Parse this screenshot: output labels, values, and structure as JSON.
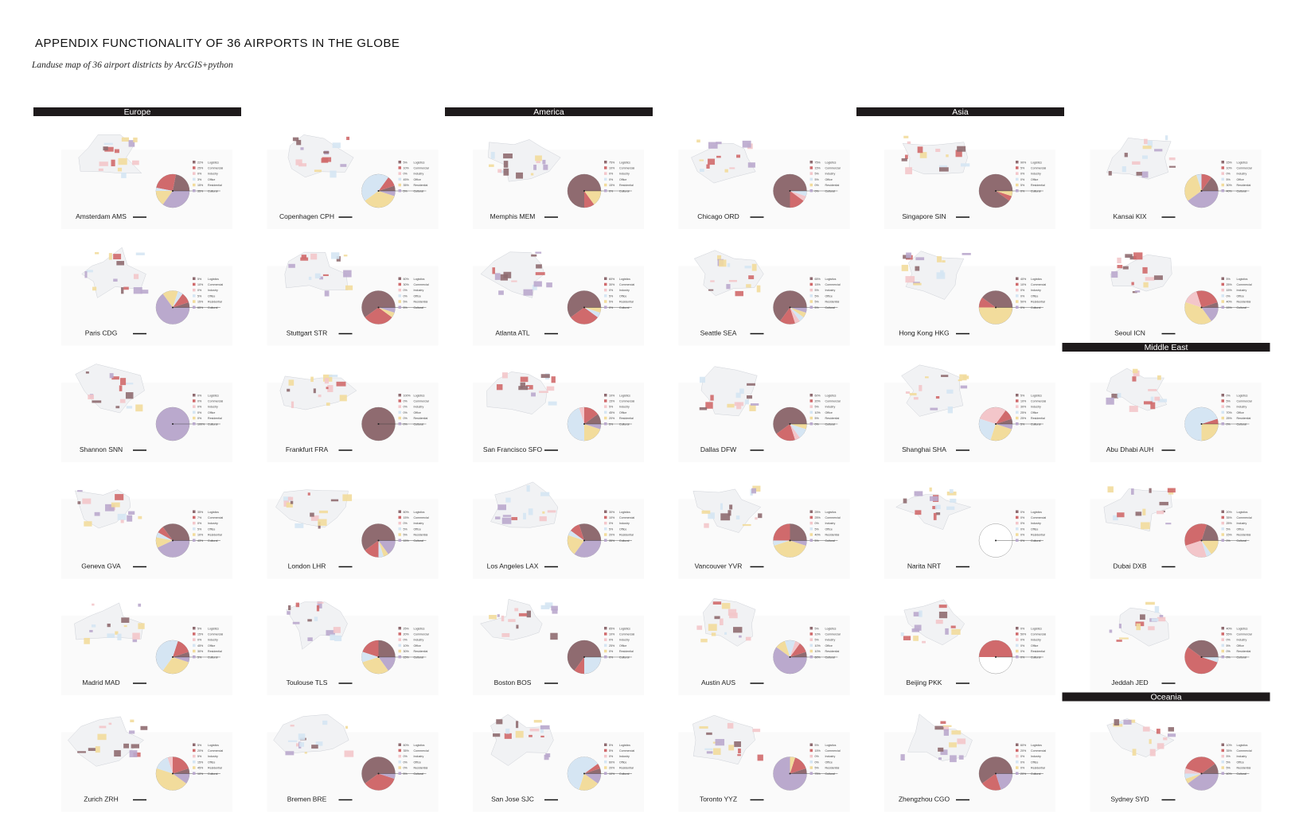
{
  "header": {
    "title": "APPENDIX    FUNCTIONALITY OF 36 AIRPORTS IN THE GLOBE",
    "subtitle": "Landuse map of 36 airport districts by ArcGIS+python"
  },
  "categories": [
    "Logistics",
    "Commercial",
    "Industry",
    "Office",
    "Residential",
    "Cultural"
  ],
  "colors": [
    "#8f6b70",
    "#d06a6c",
    "#f3c6ca",
    "#d5e5f3",
    "#f2dc9c",
    "#baa9cd"
  ],
  "regions": [
    {
      "name": "Europe",
      "column": 0,
      "row": 0
    },
    {
      "name": "America",
      "column": 2,
      "row": 0
    },
    {
      "name": "Asia",
      "column": 4,
      "row": 0
    },
    {
      "name": "Middle East",
      "column": 5,
      "row": 2
    },
    {
      "name": "Oceania",
      "column": 5,
      "row": 5
    }
  ],
  "airports": [
    {
      "name": "Amsterdam AMS",
      "shares": [
        22,
        25,
        0,
        3,
        15,
        35
      ],
      "share_labels": [
        "22%",
        "25%",
        "0%",
        "3%",
        "15%",
        "35%"
      ]
    },
    {
      "name": "Paris CDG",
      "shares": [
        5,
        10,
        0,
        5,
        15,
        65
      ],
      "share_labels": [
        "5%",
        "10%",
        "0%",
        "5%",
        "15%",
        "65%"
      ]
    },
    {
      "name": "Shannon SNN",
      "shares": [
        0,
        0,
        0,
        0,
        0,
        100
      ],
      "share_labels": [
        "0%",
        "0%",
        "0%",
        "0%",
        "0%",
        "100%"
      ]
    },
    {
      "name": "Geneva GVA",
      "shares": [
        35,
        7,
        0,
        5,
        10,
        43
      ],
      "share_labels": [
        "35%",
        "7%",
        "0%",
        "5%",
        "10%",
        "43%"
      ]
    },
    {
      "name": "Madrid MAD",
      "shares": [
        5,
        15,
        0,
        45,
        30,
        5
      ],
      "share_labels": [
        "5%",
        "15%",
        "0%",
        "45%",
        "30%",
        "5%"
      ]
    },
    {
      "name": "Zurich ZRH",
      "shares": [
        5,
        20,
        5,
        15,
        45,
        10
      ],
      "share_labels": [
        "5%",
        "20%",
        "5%",
        "15%",
        "45%",
        "10%"
      ]
    },
    {
      "name": "Copenhagen CPH",
      "shares": [
        5,
        10,
        0,
        45,
        35,
        5
      ],
      "share_labels": [
        "5%",
        "10%",
        "0%",
        "45%",
        "35%",
        "5%"
      ]
    },
    {
      "name": "Stuttgart STR",
      "shares": [
        60,
        30,
        0,
        0,
        5,
        5
      ],
      "share_labels": [
        "60%",
        "30%",
        "0%",
        "0%",
        "5%",
        "5%"
      ]
    },
    {
      "name": "Frankfurt FRA",
      "shares": [
        100,
        0,
        0,
        0,
        0,
        0
      ],
      "share_labels": [
        "100%",
        "0%",
        "0%",
        "0%",
        "0%",
        "0%"
      ]
    },
    {
      "name": "London LHR",
      "shares": [
        60,
        15,
        0,
        5,
        5,
        15
      ],
      "share_labels": [
        "60%",
        "15%",
        "0%",
        "5%",
        "5%",
        "15%"
      ]
    },
    {
      "name": "Toulouse TLS",
      "shares": [
        25,
        20,
        0,
        10,
        30,
        15
      ],
      "share_labels": [
        "25%",
        "20%",
        "0%",
        "10%",
        "30%",
        "15%"
      ]
    },
    {
      "name": "Bremen BRE",
      "shares": [
        60,
        35,
        0,
        0,
        0,
        5
      ],
      "share_labels": [
        "60%",
        "35%",
        "0%",
        "0%",
        "0%",
        "5%"
      ]
    },
    {
      "name": "Memphis MEM",
      "shares": [
        75,
        10,
        0,
        0,
        15,
        0
      ],
      "share_labels": [
        "75%",
        "10%",
        "0%",
        "0%",
        "15%",
        "0%"
      ]
    },
    {
      "name": "Atlanta ATL",
      "shares": [
        60,
        30,
        0,
        5,
        5,
        0
      ],
      "share_labels": [
        "60%",
        "30%",
        "0%",
        "5%",
        "5%",
        "0%"
      ]
    },
    {
      "name": "San Francisco SFO",
      "shares": [
        10,
        15,
        5,
        45,
        20,
        5
      ],
      "share_labels": [
        "10%",
        "15%",
        "5%",
        "45%",
        "20%",
        "5%"
      ]
    },
    {
      "name": "Los Angeles LAX",
      "shares": [
        30,
        10,
        0,
        5,
        20,
        35
      ],
      "share_labels": [
        "30%",
        "10%",
        "0%",
        "5%",
        "20%",
        "35%"
      ]
    },
    {
      "name": "Boston BOS",
      "shares": [
        65,
        10,
        0,
        25,
        0,
        0
      ],
      "share_labels": [
        "65%",
        "10%",
        "0%",
        "25%",
        "0%",
        "0%"
      ]
    },
    {
      "name": "San Jose SJC",
      "shares": [
        5,
        5,
        0,
        60,
        20,
        10
      ],
      "share_labels": [
        "5%",
        "5%",
        "0%",
        "60%",
        "20%",
        "10%"
      ]
    },
    {
      "name": "Chicago ORD",
      "shares": [
        75,
        15,
        5,
        5,
        0,
        0
      ],
      "share_labels": [
        "75%",
        "15%",
        "5%",
        "5%",
        "0%",
        "0%"
      ]
    },
    {
      "name": "Seattle SEA",
      "shares": [
        65,
        15,
        5,
        5,
        5,
        5
      ],
      "share_labels": [
        "65%",
        "15%",
        "5%",
        "5%",
        "5%",
        "5%"
      ]
    },
    {
      "name": "Dallas DFW",
      "shares": [
        60,
        20,
        5,
        10,
        5,
        0
      ],
      "share_labels": [
        "60%",
        "20%",
        "5%",
        "10%",
        "5%",
        "0%"
      ]
    },
    {
      "name": "Vancouver YVR",
      "shares": [
        25,
        25,
        0,
        5,
        40,
        5
      ],
      "share_labels": [
        "25%",
        "25%",
        "0%",
        "5%",
        "40%",
        "5%"
      ]
    },
    {
      "name": "Austin AUS",
      "shares": [
        5,
        10,
        5,
        10,
        10,
        60
      ],
      "share_labels": [
        "5%",
        "10%",
        "5%",
        "10%",
        "10%",
        "60%"
      ]
    },
    {
      "name": "Toronto YYZ",
      "shares": [
        5,
        15,
        0,
        0,
        5,
        75
      ],
      "share_labels": [
        "5%",
        "15%",
        "0%",
        "0%",
        "5%",
        "75%"
      ]
    },
    {
      "name": "Singapore SIN",
      "shares": [
        90,
        5,
        0,
        0,
        5,
        0
      ],
      "share_labels": [
        "90%",
        "5%",
        "0%",
        "0%",
        "5%",
        "0%"
      ]
    },
    {
      "name": "Hong Kong HKG",
      "shares": [
        40,
        10,
        0,
        0,
        50,
        0
      ],
      "share_labels": [
        "40%",
        "10%",
        "0%",
        "0%",
        "50%",
        "0%"
      ]
    },
    {
      "name": "Shanghai SHA",
      "shares": [
        5,
        10,
        30,
        25,
        25,
        5
      ],
      "share_labels": [
        "5%",
        "10%",
        "30%",
        "25%",
        "25%",
        "5%"
      ]
    },
    {
      "name": "Narita NRT",
      "shares": [
        0,
        0,
        0,
        0,
        0,
        0
      ],
      "share_labels": [
        "0%",
        "0%",
        "0%",
        "0%",
        "0%",
        "0%"
      ]
    },
    {
      "name": "Beijing PKK",
      "shares": [
        0,
        50,
        0,
        0,
        0,
        0
      ],
      "share_labels": [
        "0%",
        "50%",
        "0%",
        "0%",
        "0%",
        "0%"
      ]
    },
    {
      "name": "Zhengzhou CGO",
      "shares": [
        60,
        20,
        0,
        0,
        0,
        20
      ],
      "share_labels": [
        "60%",
        "20%",
        "0%",
        "0%",
        "0%",
        "20%"
      ]
    },
    {
      "name": "Kansai KIX",
      "shares": [
        15,
        10,
        0,
        5,
        30,
        40
      ],
      "share_labels": [
        "15%",
        "10%",
        "0%",
        "5%",
        "30%",
        "40%"
      ]
    },
    {
      "name": "Seoul ICN",
      "shares": [
        5,
        25,
        15,
        0,
        40,
        15
      ],
      "share_labels": [
        "5%",
        "25%",
        "15%",
        "0%",
        "40%",
        "15%"
      ]
    },
    {
      "name": "Abu Dhabi AUH",
      "shares": [
        0,
        5,
        0,
        70,
        25,
        0
      ],
      "share_labels": [
        "0%",
        "5%",
        "0%",
        "70%",
        "25%",
        "0%"
      ]
    },
    {
      "name": "Dubai DXB",
      "shares": [
        20,
        35,
        25,
        5,
        15,
        0
      ],
      "share_labels": [
        "20%",
        "35%",
        "25%",
        "5%",
        "15%",
        "0%"
      ]
    },
    {
      "name": "Jeddah JED",
      "shares": [
        40,
        55,
        0,
        5,
        0,
        0
      ],
      "share_labels": [
        "40%",
        "55%",
        "0%",
        "5%",
        "0%",
        "0%"
      ]
    },
    {
      "name": "Sydney SYD",
      "shares": [
        10,
        35,
        5,
        5,
        5,
        40
      ],
      "share_labels": [
        "10%",
        "35%",
        "5%",
        "5%",
        "5%",
        "40%"
      ]
    }
  ]
}
